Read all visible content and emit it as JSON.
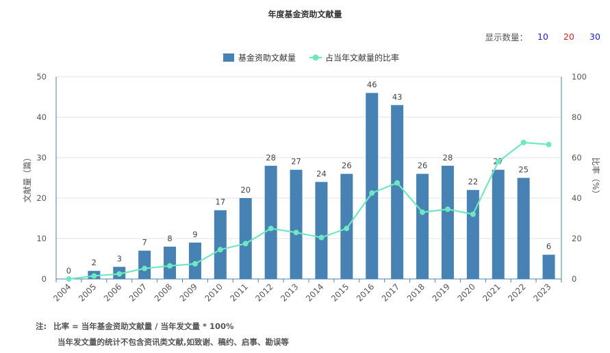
{
  "title": "年度基金资助文献量",
  "display_count": {
    "label": "显示数量：",
    "options": [
      {
        "value": "10",
        "color": "#1a1ad6"
      },
      {
        "value": "20",
        "color": "#e02020"
      },
      {
        "value": "30",
        "color": "#1a1ad6"
      }
    ]
  },
  "colors": {
    "bar": "#4682b4",
    "line": "#6ee8c0",
    "left_axis": "#4682b4",
    "right_axis": "#2a9a8a",
    "grid": "#e0e0e0"
  },
  "notes": {
    "prefix": "注:",
    "line1": "比率 = 当年基金资助文献量 / 当年发文量 * 100%",
    "line2": "当年发文量的统计不包含资讯类文献,如致谢、稿约、启事、勘误等"
  },
  "chart_data": {
    "type": "bar",
    "categories": [
      "2004",
      "2005",
      "2006",
      "2007",
      "2008",
      "2009",
      "2010",
      "2011",
      "2012",
      "2013",
      "2014",
      "2015",
      "2016",
      "2017",
      "2018",
      "2019",
      "2020",
      "2021",
      "2022",
      "2023"
    ],
    "series": [
      {
        "name": "基金资助文献量",
        "type": "bar",
        "axis": "left",
        "values": [
          0,
          2,
          3,
          7,
          8,
          9,
          17,
          20,
          28,
          27,
          24,
          26,
          46,
          43,
          26,
          28,
          22,
          27,
          25,
          6
        ]
      },
      {
        "name": "占当年文献量的比率",
        "type": "line",
        "axis": "right",
        "values": [
          0,
          1.5,
          2.5,
          5.2,
          6.5,
          7.5,
          14.5,
          17.5,
          25,
          23,
          20.5,
          25,
          42.5,
          47.5,
          33,
          34.5,
          32,
          58,
          67.5,
          66.5
        ]
      }
    ],
    "ylabel": "文献量（篇）",
    "y2label": "比率（%）",
    "ylim": [
      0,
      50
    ],
    "y2lim": [
      0,
      100
    ],
    "yticks": [
      0,
      10,
      20,
      30,
      40,
      50
    ],
    "y2ticks": [
      0,
      20,
      40,
      60,
      80,
      100
    ],
    "legend_position": "top-center",
    "grid": true
  }
}
